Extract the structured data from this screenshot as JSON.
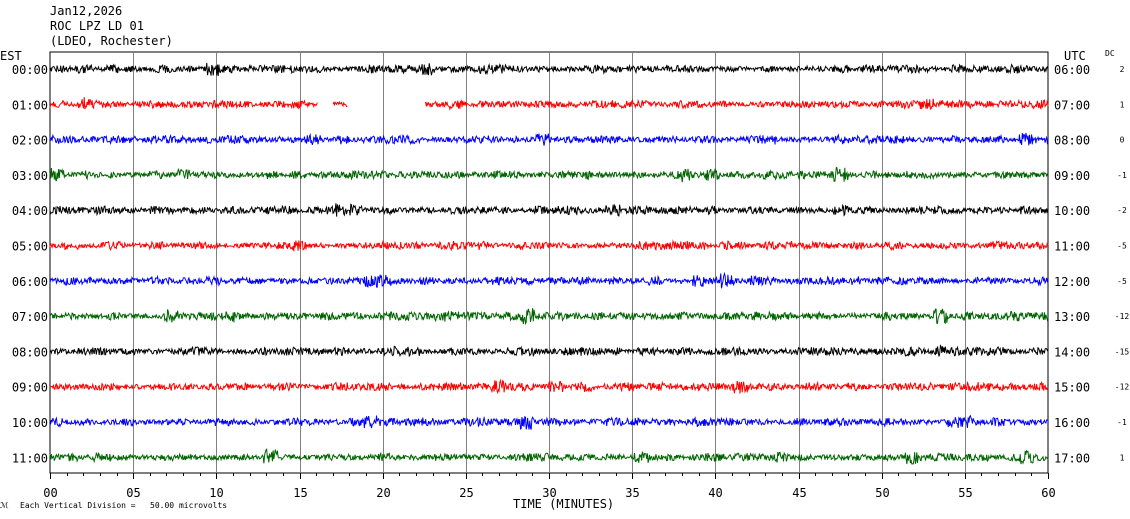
{
  "header": {
    "date": "Jan12,2026",
    "station": "ROC LPZ LD 01",
    "network": "(LDEO, Rochester)"
  },
  "left_axis_title": "EST",
  "right_axis_title": "UTC",
  "dc_title": "DC",
  "x_axis_title": "TIME (MINUTES)",
  "scale_note": "Each Vertical Division =   50.00 microvolts",
  "colors": {
    "black": "#000000",
    "red": "#ff0000",
    "blue": "#0000ff",
    "green": "#006400",
    "grid": "#808080"
  },
  "chart_data": {
    "type": "line",
    "title": "ROC LPZ LD 01",
    "xlabel": "TIME (MINUTES)",
    "xlim": [
      0,
      60
    ],
    "x_ticks": [
      "00",
      "05",
      "10",
      "15",
      "20",
      "25",
      "30",
      "35",
      "40",
      "45",
      "50",
      "55",
      "60"
    ],
    "grid": true,
    "series": [
      {
        "est": "00:00",
        "utc": "06:00",
        "dc": "2",
        "color": "#000000",
        "gaps": []
      },
      {
        "est": "01:00",
        "utc": "07:00",
        "dc": "1",
        "color": "#ff0000",
        "gaps": [
          [
            16.1,
            17.0
          ],
          [
            17.9,
            22.5
          ]
        ]
      },
      {
        "est": "02:00",
        "utc": "08:00",
        "dc": "0",
        "color": "#0000ff",
        "gaps": []
      },
      {
        "est": "03:00",
        "utc": "09:00",
        "dc": "-1",
        "color": "#006400",
        "gaps": []
      },
      {
        "est": "04:00",
        "utc": "10:00",
        "dc": "-2",
        "color": "#000000",
        "gaps": []
      },
      {
        "est": "05:00",
        "utc": "11:00",
        "dc": "-5",
        "color": "#ff0000",
        "gaps": []
      },
      {
        "est": "06:00",
        "utc": "12:00",
        "dc": "-5",
        "color": "#0000ff",
        "gaps": []
      },
      {
        "est": "07:00",
        "utc": "13:00",
        "dc": "-12",
        "color": "#006400",
        "gaps": []
      },
      {
        "est": "08:00",
        "utc": "14:00",
        "dc": "-15",
        "color": "#000000",
        "gaps": []
      },
      {
        "est": "09:00",
        "utc": "15:00",
        "dc": "-12",
        "color": "#ff0000",
        "gaps": []
      },
      {
        "est": "10:00",
        "utc": "16:00",
        "dc": "-1",
        "color": "#0000ff",
        "gaps": []
      },
      {
        "est": "11:00",
        "utc": "17:00",
        "dc": "1",
        "color": "#006400",
        "gaps": []
      }
    ]
  }
}
